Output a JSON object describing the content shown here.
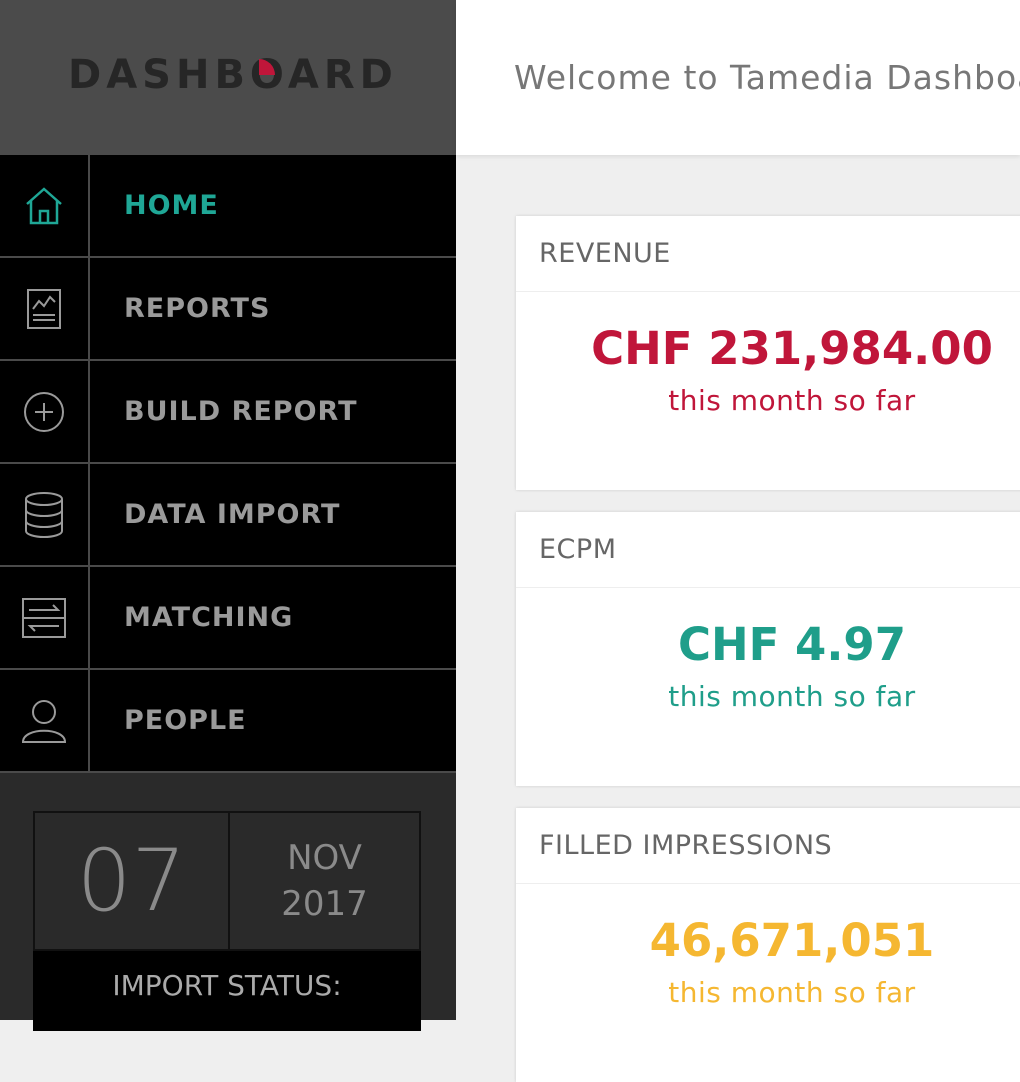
{
  "sidebar": {
    "logo": "DASHBOARD",
    "nav": [
      {
        "label": "HOME",
        "active": true
      },
      {
        "label": "REPORTS",
        "active": false
      },
      {
        "label": "BUILD REPORT",
        "active": false
      },
      {
        "label": "DATA IMPORT",
        "active": false
      },
      {
        "label": "MATCHING",
        "active": false
      },
      {
        "label": "PEOPLE",
        "active": false
      }
    ],
    "date": {
      "day": "07",
      "month": "NOV",
      "year": "2017"
    },
    "import_status": "IMPORT STATUS:"
  },
  "header": {
    "title": "Welcome to Tamedia Dashboard"
  },
  "cards": [
    {
      "title": "REVENUE",
      "value": "CHF 231,984.00",
      "caption": "this month so far",
      "color": "#c0163a"
    },
    {
      "title": "ECPM",
      "value": "CHF 4.97",
      "caption": "this month so far",
      "color": "#1f9e8a"
    },
    {
      "title": "FILLED IMPRESSIONS",
      "value": "46,671,051",
      "caption": "this month so far",
      "color": "#f5b731"
    }
  ]
}
